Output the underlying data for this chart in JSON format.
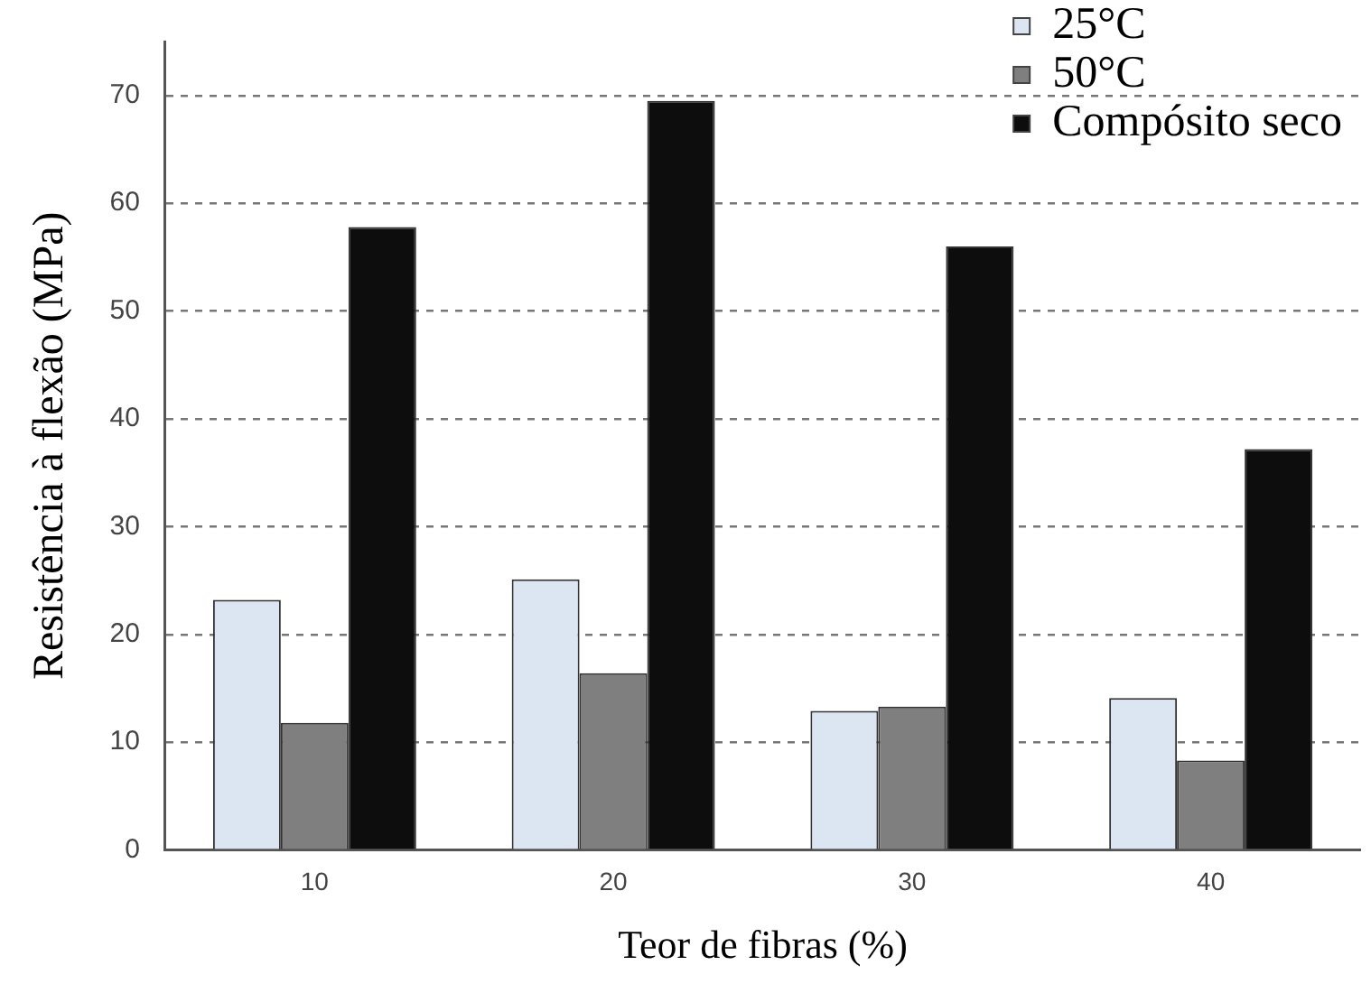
{
  "chart_data": {
    "type": "bar",
    "xlabel": "Teor de fibras (%)",
    "ylabel": "Resistência à flexão (MPa)",
    "categories": [
      "10",
      "20",
      "30",
      "40"
    ],
    "series": [
      {
        "name": "25°C",
        "color": "#dce6f2",
        "values": [
          23.2,
          25.1,
          12.9,
          14.1
        ]
      },
      {
        "name": "50°C",
        "color": "#7f7f7f",
        "values": [
          11.8,
          16.4,
          13.3,
          8.3
        ]
      },
      {
        "name": "Compósito seco",
        "color": "#0d0d0d",
        "values": [
          57.8,
          69.5,
          56.0,
          37.2
        ]
      }
    ],
    "ylim": [
      0,
      75
    ],
    "yticks": [
      0,
      10,
      20,
      30,
      40,
      50,
      60,
      70
    ],
    "grid": "y",
    "legend": "top right"
  }
}
